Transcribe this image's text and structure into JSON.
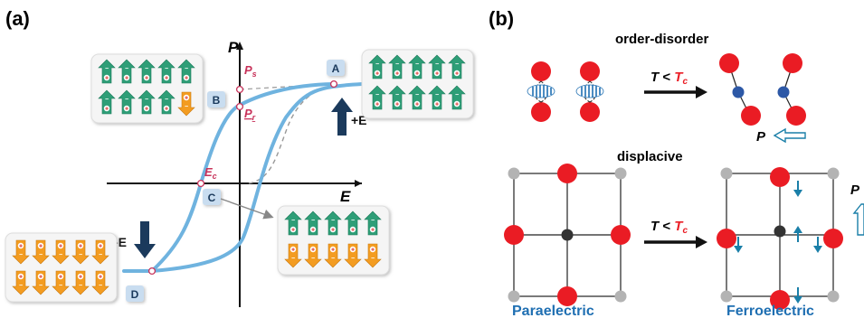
{
  "panel_a": {
    "label": "(a)",
    "axis_p": "P",
    "axis_e": "E",
    "ps": "P",
    "ps_sub": "s",
    "pr": "P",
    "pr_sub": "r",
    "ec": "E",
    "ec_sub": "c",
    "box_a": "A",
    "box_b": "B",
    "box_c": "C",
    "box_d": "D",
    "plus_e": "+E",
    "minus_e": "-E",
    "plus_sign": "+",
    "minus_sign": "−"
  },
  "panel_b": {
    "label": "(b)",
    "title_order": "order-disorder",
    "title_displacive": "displacive",
    "t_lt": "T",
    "t_op": " < ",
    "t_c": "T",
    "t_c_sub": "c",
    "p_label": "P",
    "p_edge": "P",
    "para": "Paraelectric",
    "ferro": "Ferroelectric"
  },
  "colors": {
    "loop": "#6fb3df",
    "green": "#2e9e77",
    "orange": "#f39c21",
    "red_atom": "#ea1c24",
    "grey_atom": "#b3b3b3",
    "blue_dark": "#1f6fb2",
    "teal_arrow": "#1a7fa8",
    "navy_arrow": "#1b3a5c",
    "pink_label": "#c8325a",
    "box_fill": "#c9ddf0"
  }
}
